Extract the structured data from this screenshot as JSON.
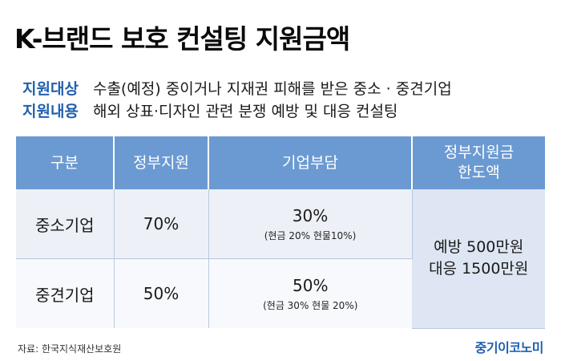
{
  "title": "K-브랜드 보호 컨설팅 지원금액",
  "info": [
    {
      "label": "지원대상",
      "text": "수출(예정) 중이거나 지재권 피해를 받은 중소 · 중견기업"
    },
    {
      "label": "지원내용",
      "text": "해외 상표·디자인 관련 분쟁 예방 및 대응 컨설팅"
    }
  ],
  "table": {
    "headers": [
      "구분",
      "정부지원",
      "기업부담",
      "정부지원금\n한도액"
    ],
    "rows": [
      {
        "category": "중소기업",
        "gov_support": "70%",
        "company_burden": "30%",
        "company_detail": "(현금 20% 현물10%)"
      },
      {
        "category": "중견기업",
        "gov_support": "50%",
        "company_burden": "50%",
        "company_detail": "(현금 30% 현물 20%)"
      }
    ],
    "limit_lines": [
      "예방 500만원",
      "대응 1500만원"
    ]
  },
  "source": "자료: 한국지식재산보호원",
  "logo": "중기이코노미",
  "colors": {
    "accent": "#1f5fae",
    "header_bg": "#6b9ad2",
    "row_bg": "#edf1f7",
    "limit_bg": "#dde6f2"
  }
}
